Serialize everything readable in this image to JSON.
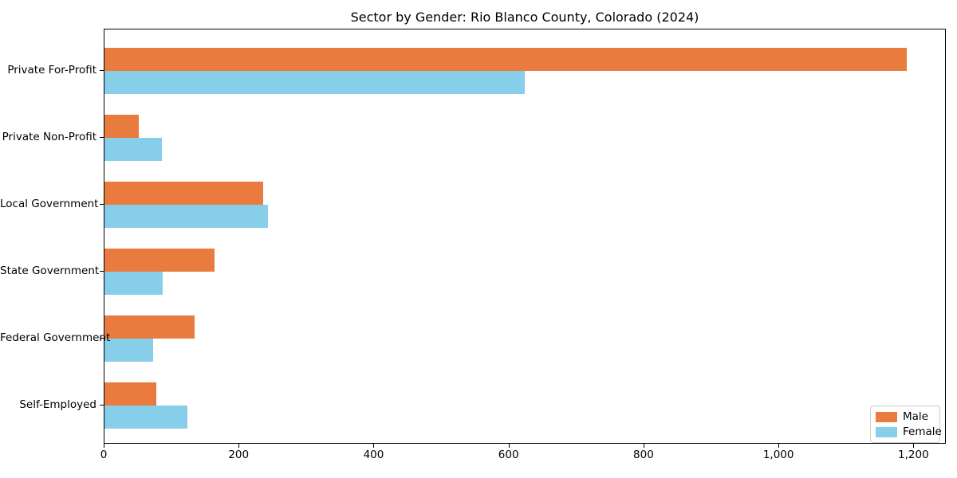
{
  "chart_data": {
    "type": "bar",
    "orientation": "horizontal",
    "title": "Sector by Gender: Rio Blanco County, Colorado (2024)",
    "categories": [
      "Private For-Profit",
      "Private Non-Profit",
      "Local Government",
      "State Government",
      "Federal Government",
      "Self-Employed"
    ],
    "series": [
      {
        "name": "Male",
        "color": "#e87b3d",
        "values": [
          1189,
          51,
          235,
          163,
          133,
          77
        ]
      },
      {
        "name": "Female",
        "color": "#87ceeb",
        "values": [
          623,
          85,
          242,
          86,
          72,
          123
        ]
      }
    ],
    "xlabel": "",
    "ylabel": "",
    "xlim": [
      0,
      1248
    ],
    "xticks": [
      {
        "value": 0,
        "label": "0"
      },
      {
        "value": 200,
        "label": "200"
      },
      {
        "value": 400,
        "label": "400"
      },
      {
        "value": 600,
        "label": "600"
      },
      {
        "value": 800,
        "label": "800"
      },
      {
        "value": 1000,
        "label": "1,000"
      },
      {
        "value": 1200,
        "label": "1,200"
      }
    ],
    "grid": false,
    "legend": {
      "position": "lower right",
      "entries": [
        "Male",
        "Female"
      ]
    }
  }
}
